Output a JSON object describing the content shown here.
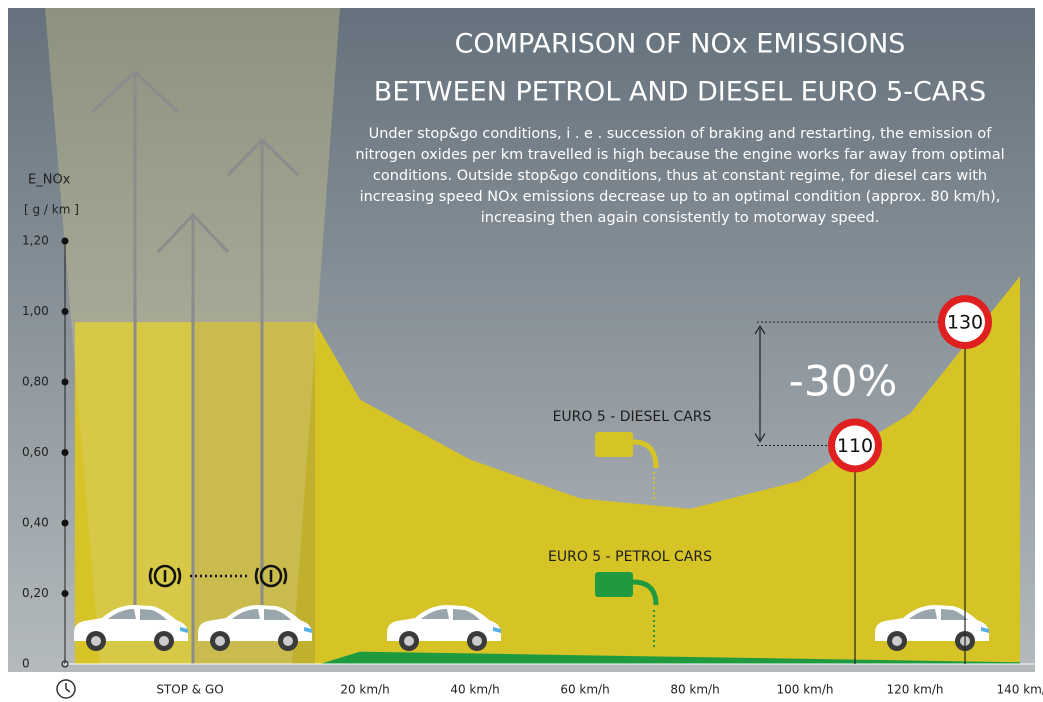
{
  "chart_data": {
    "type": "area",
    "title": [
      "COMPARISON OF NOx EMISSIONS",
      "BETWEEN PETROL AND DIESEL EURO 5-CARS"
    ],
    "description": "Under stop&go conditions,  i . e .   succession of braking and restarting, the emission of nitrogen oxides per km travelled is high because the engine works far away from optimal conditions. Outside stop&go conditions, thus at constant regime, for diesel cars with increasing speed  NOx emissions decrease up to an optimal condition (approx.  80  km/h),  increasing then again consistently to motorway speed.",
    "y_label": "E_NOx",
    "y_unit": "[ g / km  ]",
    "ylim": [
      0,
      1.2
    ],
    "yticks": [
      0,
      {
        "value": 0.2,
        "label": "0,20"
      },
      {
        "value": 0.4,
        "label": "0,40"
      },
      {
        "value": 0.6,
        "label": "0,60"
      },
      {
        "value": 0.8,
        "label": "0,80"
      },
      {
        "value": 1.0,
        "label": "1,00"
      },
      {
        "value": 1.2,
        "label": "1,20"
      }
    ],
    "xlim": [
      20,
      140
    ],
    "xticks": [
      {
        "value": 20,
        "label": "20 km/h"
      },
      {
        "value": 40,
        "label": "40 km/h"
      },
      {
        "value": 60,
        "label": "60 km/h"
      },
      {
        "value": 80,
        "label": "80 km/h"
      },
      {
        "value": 100,
        "label": "100 km/h"
      },
      {
        "value": 120,
        "label": "120 km/h"
      },
      {
        "value": 140,
        "label": "140 km/h"
      }
    ],
    "stop_go": {
      "label": "STOP & GO",
      "value": 0.97
    },
    "series": [
      {
        "name": "EURO 5 - DIESEL CARS",
        "color": "#d6c326",
        "x": [
          20,
          40,
          60,
          80,
          100,
          120,
          140
        ],
        "values": [
          0.75,
          0.58,
          0.47,
          0.44,
          0.52,
          0.71,
          1.1
        ]
      },
      {
        "name": "EURO 5 - PETROL CARS",
        "color": "#1f9a3f",
        "x": [
          20,
          40,
          60,
          80,
          100,
          120,
          140
        ],
        "values": [
          0.035,
          0.03,
          0.025,
          0.02,
          0.015,
          0.01,
          0.005
        ]
      }
    ],
    "speed_signs": [
      {
        "label": "110",
        "x": 110,
        "value": 0.62
      },
      {
        "label": "130",
        "x": 130,
        "value": 0.97
      }
    ],
    "reduction_label": "-30%"
  }
}
